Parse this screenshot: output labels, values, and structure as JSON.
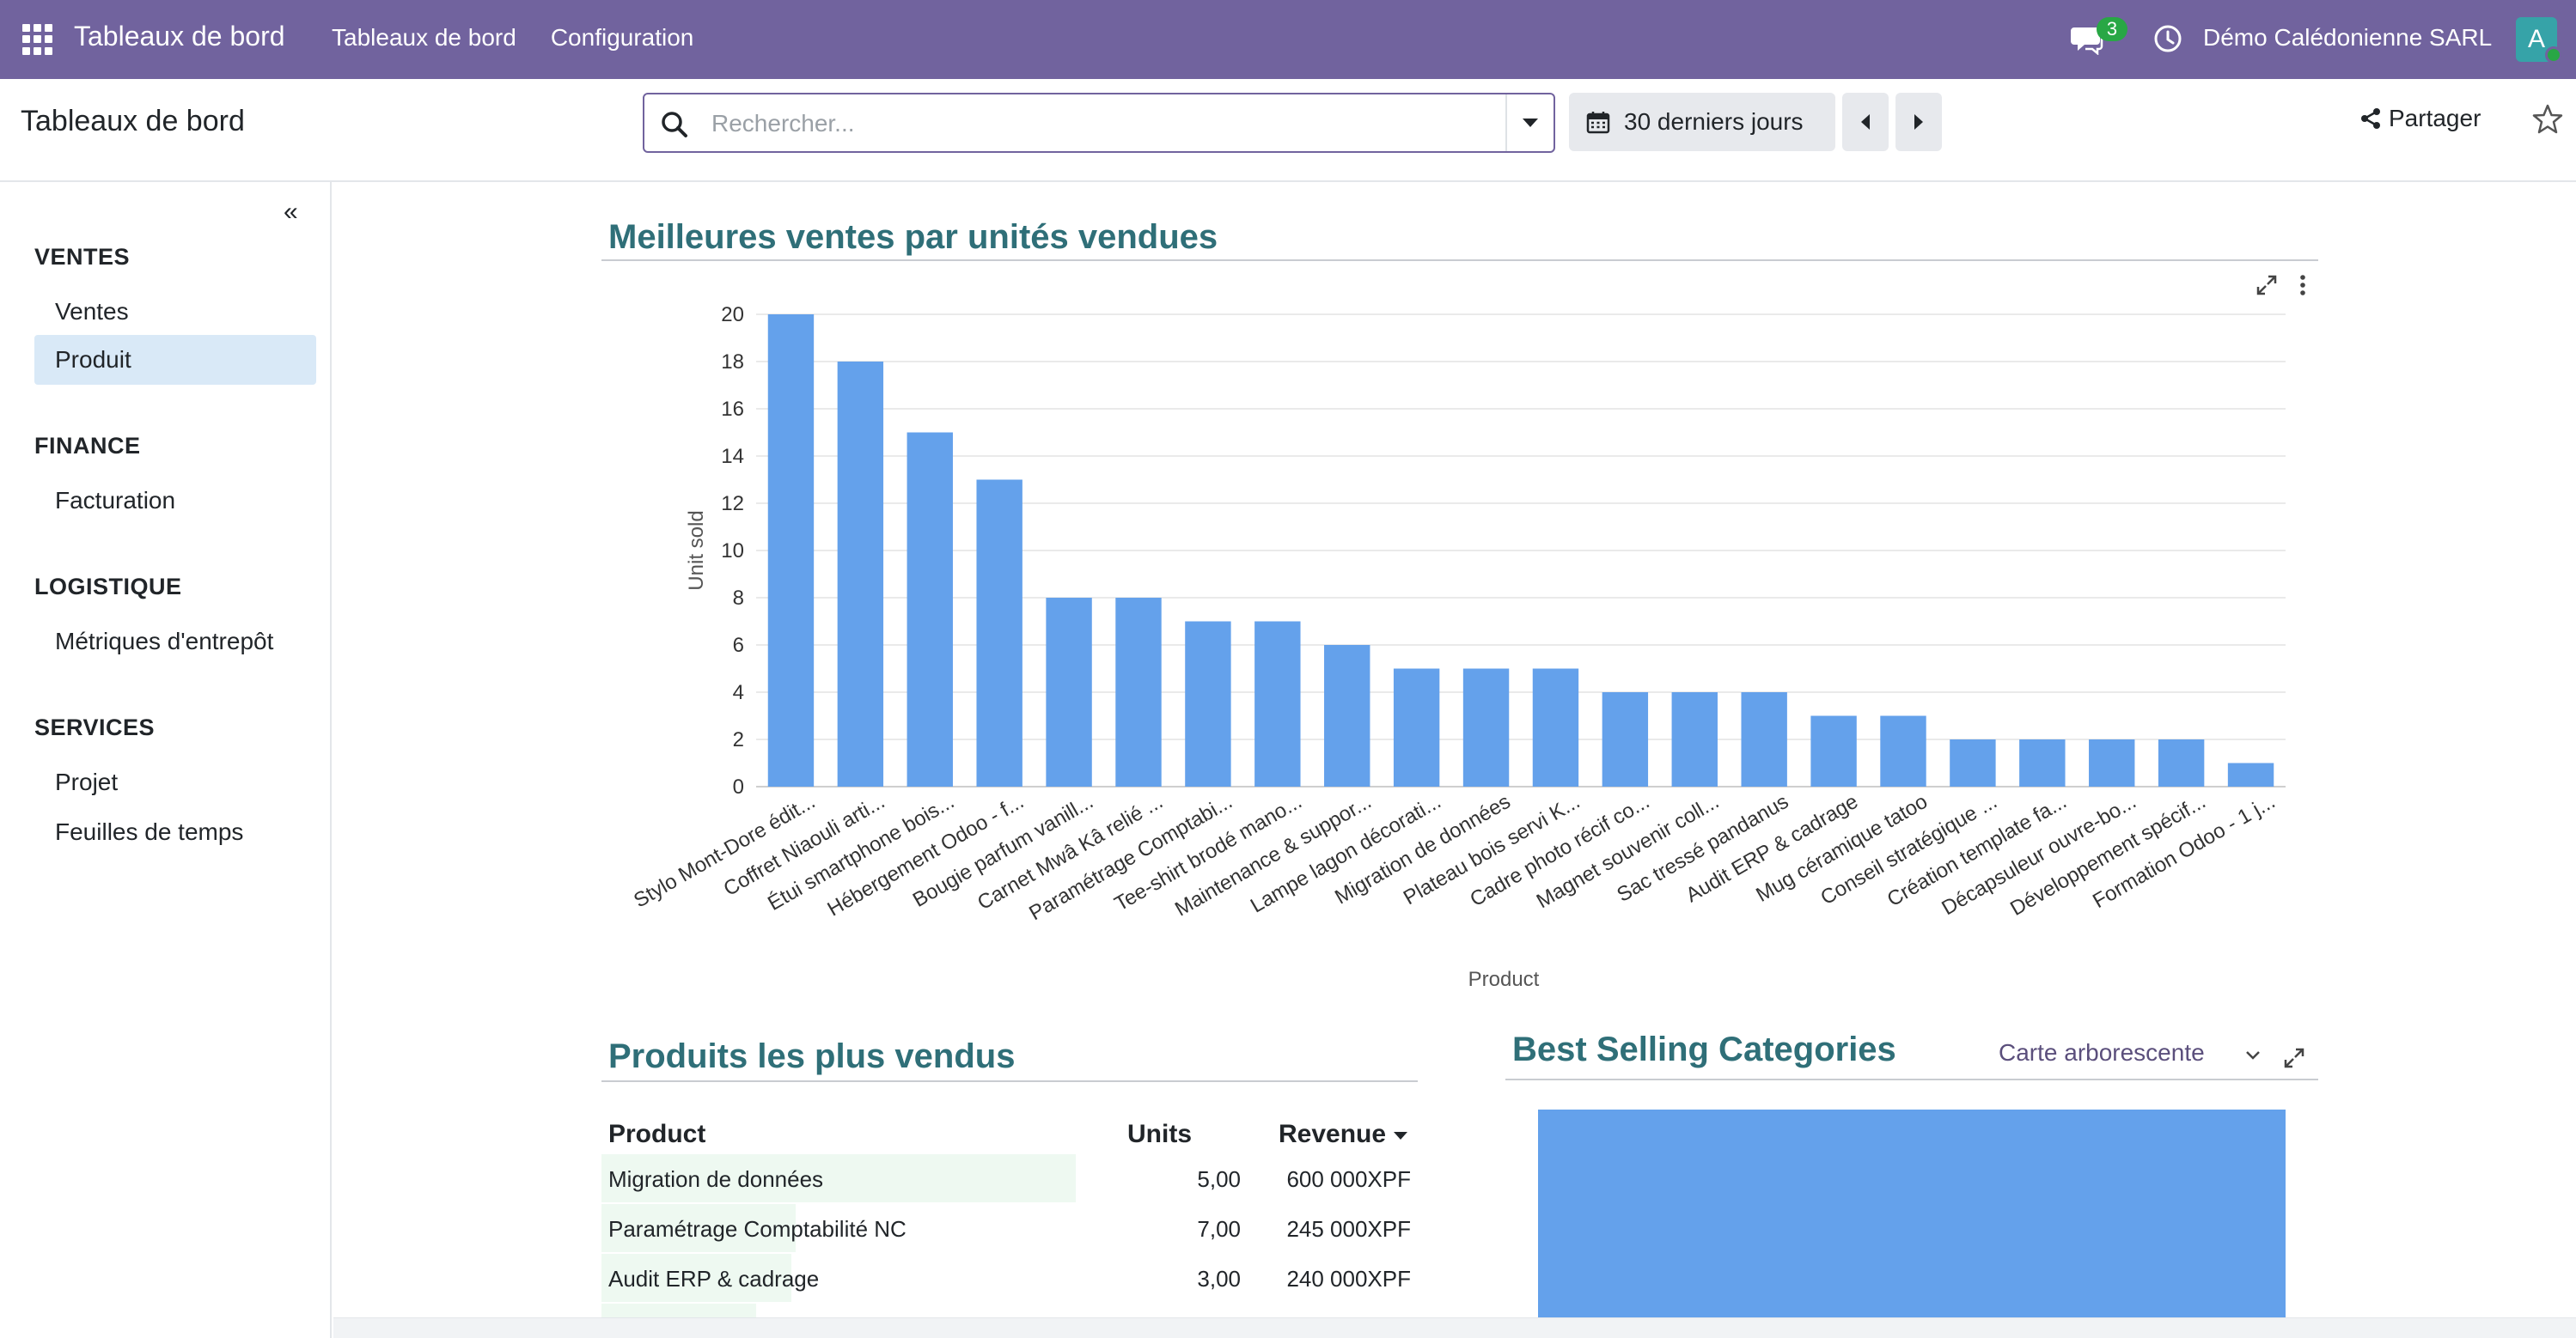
{
  "navbar": {
    "app_title": "Tableaux de bord",
    "menu": [
      "Tableaux de bord",
      "Configuration"
    ],
    "chat_count": "3",
    "company": "Démo Calédonienne SARL",
    "avatar_letter": "A",
    "bg_color": "#71639e"
  },
  "control": {
    "page_title": "Tableaux de bord",
    "search_placeholder": "Rechercher...",
    "date_filter": "30 derniers jours",
    "share_label": "Partager"
  },
  "sidebar": {
    "groups": [
      {
        "title": "VENTES",
        "items": [
          {
            "label": "Ventes"
          },
          {
            "label": "Produit",
            "active": true
          }
        ]
      },
      {
        "title": "FINANCE",
        "items": [
          {
            "label": "Facturation"
          }
        ]
      },
      {
        "title": "LOGISTIQUE",
        "items": [
          {
            "label": "Métriques d'entrepôt"
          }
        ]
      },
      {
        "title": "SERVICES",
        "items": [
          {
            "label": "Projet"
          },
          {
            "label": "Feuilles de temps"
          }
        ]
      }
    ]
  },
  "section1": {
    "title": "Meilleures ventes par unités vendues"
  },
  "chart_data": {
    "type": "bar",
    "xlabel": "Product",
    "ylabel": "Unit sold",
    "ylim": [
      0,
      20
    ],
    "yticks": [
      0,
      2,
      4,
      6,
      8,
      10,
      12,
      14,
      16,
      18,
      20
    ],
    "grid": true,
    "bar_color": "#64a1eb",
    "categories": [
      "Stylo Mont-Dore édit...",
      "Coffret Niaouli arti...",
      "Étui smartphone bois...",
      "Hébergement Odoo - f...",
      "Bougie parfum vanill...",
      "Carnet Mwâ Kâ relié ...",
      "Paramétrage Comptabi...",
      "Tee-shirt brodé mano...",
      "Maintenance & suppor...",
      "Lampe lagon décorati...",
      "Migration de données",
      "Plateau bois servi K...",
      "Cadre photo récif co...",
      "Magnet souvenir coll...",
      "Sac tressé pandanus",
      "Audit ERP & cadrage",
      "Mug céramique tatoo",
      "Conseil stratégique ...",
      "Création template fa...",
      "Décapsuleur ouvre-bo...",
      "Développement spécif...",
      "Formation Odoo - 1 j..."
    ],
    "values": [
      20,
      18,
      15,
      13,
      8,
      8,
      7,
      7,
      6,
      5,
      5,
      5,
      4,
      4,
      4,
      3,
      3,
      2,
      2,
      2,
      2,
      1
    ]
  },
  "section2": {
    "title": "Produits les plus vendus",
    "headers": {
      "product": "Product",
      "units": "Units",
      "revenue": "Revenue"
    },
    "rows": [
      {
        "product": "Migration de données",
        "units": "5,00",
        "revenue": "600 000XPF",
        "bar_fraction": 1.0
      },
      {
        "product": "Paramétrage Comptabilité NC",
        "units": "7,00",
        "revenue": "245 000XPF",
        "bar_fraction": 0.41
      },
      {
        "product": "Audit ERP & cadrage",
        "units": "3,00",
        "revenue": "240 000XPF",
        "bar_fraction": 0.4
      }
    ]
  },
  "section3": {
    "title": "Best Selling Categories",
    "view_select": "Carte arborescente"
  }
}
